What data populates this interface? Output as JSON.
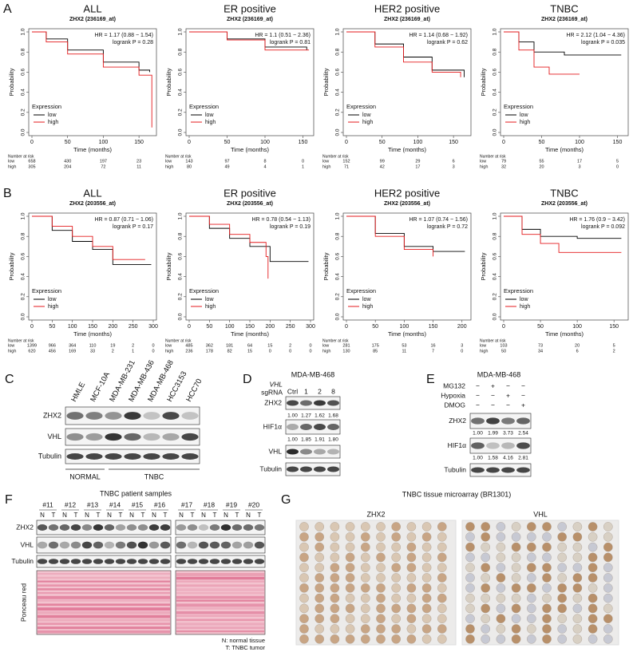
{
  "panel_letters": [
    "A",
    "B",
    "C",
    "D",
    "E",
    "F",
    "G"
  ],
  "km_common": {
    "xlabel": "Time (months)",
    "ylabel": "Probability",
    "legend_title": "Expression",
    "risk_title": "Number at risk",
    "ylim": [
      0,
      1
    ],
    "yticks": [
      {
        "value": 0,
        "label": "0.0"
      },
      {
        "value": 0.2,
        "label": "0.2"
      },
      {
        "value": 0.4,
        "label": "0.4"
      },
      {
        "value": 0.6,
        "label": "0.6"
      },
      {
        "value": 0.8,
        "label": "0.8"
      },
      {
        "value": 1,
        "label": "1.0"
      }
    ]
  },
  "km_rows": [
    {
      "probe": "ZHX2 (236169_at)",
      "panels": [
        {
          "title": "ALL",
          "hr": "HR = 1.17 (0.88 − 1.54)",
          "logrank": "logrank P = 0.28",
          "xlim": [
            0,
            170
          ],
          "xticks": [
            0,
            50,
            100,
            150
          ],
          "series": [
            {
              "name": "low",
              "color": "#000000",
              "x": [
                0,
                20,
                50,
                100,
                150,
                165
              ],
              "y": [
                1,
                0.93,
                0.82,
                0.7,
                0.62,
                0.6
              ],
              "risk": [
                658,
                430,
                197,
                23
              ]
            },
            {
              "name": "high",
              "color": "#e41a1c",
              "x": [
                0,
                20,
                50,
                100,
                150,
                165,
                168
              ],
              "y": [
                1,
                0.9,
                0.78,
                0.65,
                0.57,
                0.57,
                0.05
              ],
              "risk": [
                305,
                204,
                72,
                11
              ]
            }
          ]
        },
        {
          "title": "ER positive",
          "hr": "HR = 1.1 (0.51 − 2.36)",
          "logrank": "logrank P = 0.81",
          "xlim": [
            0,
            160
          ],
          "xticks": [
            0,
            50,
            100,
            150
          ],
          "series": [
            {
              "name": "low",
              "color": "#000000",
              "x": [
                0,
                50,
                100,
                155
              ],
              "y": [
                1,
                0.93,
                0.85,
                0.82
              ],
              "risk": [
                143,
                97,
                8,
                0
              ]
            },
            {
              "name": "high",
              "color": "#e41a1c",
              "x": [
                0,
                50,
                100,
                158
              ],
              "y": [
                1,
                0.92,
                0.82,
                0.82
              ],
              "risk": [
                80,
                49,
                4,
                1
              ]
            }
          ]
        },
        {
          "title": "HER2 positive",
          "hr": "HR = 1.14 (0.68 − 1.92)",
          "logrank": "logrank P = 0.62",
          "xlim": [
            0,
            170
          ],
          "xticks": [
            0,
            50,
            100,
            150
          ],
          "series": [
            {
              "name": "low",
              "color": "#000000",
              "x": [
                0,
                40,
                80,
                120,
                165
              ],
              "y": [
                1,
                0.88,
                0.75,
                0.62,
                0.55
              ],
              "risk": [
                152,
                99,
                29,
                6
              ]
            },
            {
              "name": "high",
              "color": "#e41a1c",
              "x": [
                0,
                40,
                80,
                120,
                160
              ],
              "y": [
                1,
                0.85,
                0.7,
                0.6,
                0.55
              ],
              "risk": [
                71,
                42,
                17,
                3
              ]
            }
          ]
        },
        {
          "title": "TNBC",
          "hr": "HR = 2.12 (1.04 − 4.36)",
          "logrank": "logrank P = 0.035",
          "xlim": [
            0,
            160
          ],
          "xticks": [
            0,
            50,
            100,
            150
          ],
          "series": [
            {
              "name": "low",
              "color": "#000000",
              "x": [
                0,
                20,
                40,
                80,
                155
              ],
              "y": [
                1,
                0.9,
                0.8,
                0.77,
                0.77
              ],
              "risk": [
                79,
                55,
                17,
                5
              ]
            },
            {
              "name": "high",
              "color": "#e41a1c",
              "x": [
                0,
                20,
                40,
                60,
                100
              ],
              "y": [
                1,
                0.82,
                0.65,
                0.58,
                0.58
              ],
              "risk": [
                32,
                20,
                3,
                0
              ]
            }
          ]
        }
      ]
    },
    {
      "probe": "ZHX2 (203556_at)",
      "panels": [
        {
          "title": "ALL",
          "hr": "HR = 0.87 (0.71 − 1.06)",
          "logrank": "logrank P = 0.17",
          "xlim": [
            0,
            300
          ],
          "xticks": [
            0,
            50,
            100,
            150,
            200,
            250,
            300
          ],
          "series": [
            {
              "name": "low",
              "color": "#000000",
              "x": [
                0,
                50,
                100,
                150,
                200,
                295
              ],
              "y": [
                1,
                0.86,
                0.75,
                0.67,
                0.52,
                0.52
              ],
              "risk": [
                1399,
                966,
                364,
                110,
                19,
                2,
                0
              ]
            },
            {
              "name": "high",
              "color": "#e41a1c",
              "x": [
                0,
                50,
                100,
                150,
                200,
                280
              ],
              "y": [
                1,
                0.9,
                0.8,
                0.7,
                0.57,
                0.57
              ],
              "risk": [
                620,
                456,
                169,
                33,
                2,
                1,
                0
              ]
            }
          ]
        },
        {
          "title": "ER positive",
          "hr": "HR = 0.78 (0.54 − 1.13)",
          "logrank": "logrank P = 0.19",
          "xlim": [
            0,
            300
          ],
          "xticks": [
            0,
            50,
            100,
            150,
            200,
            250,
            300
          ],
          "series": [
            {
              "name": "low",
              "color": "#000000",
              "x": [
                0,
                50,
                100,
                150,
                200,
                295
              ],
              "y": [
                1,
                0.88,
                0.78,
                0.7,
                0.55,
                0.55
              ],
              "risk": [
                485,
                362,
                181,
                64,
                15,
                2,
                0
              ]
            },
            {
              "name": "high",
              "color": "#e41a1c",
              "x": [
                0,
                50,
                100,
                150,
                190,
                195
              ],
              "y": [
                1,
                0.92,
                0.82,
                0.74,
                0.6,
                0.38
              ],
              "risk": [
                236,
                178,
                82,
                15,
                0,
                0,
                0
              ]
            }
          ]
        },
        {
          "title": "HER2 positive",
          "hr": "HR = 1.07 (0.74 − 1.56)",
          "logrank": "logrank P = 0.72",
          "xlim": [
            0,
            210
          ],
          "xticks": [
            0,
            50,
            100,
            150,
            200
          ],
          "series": [
            {
              "name": "low",
              "color": "#000000",
              "x": [
                0,
                50,
                100,
                150,
                205
              ],
              "y": [
                1,
                0.83,
                0.7,
                0.65,
                0.65
              ],
              "risk": [
                281,
                175,
                53,
                16,
                3
              ]
            },
            {
              "name": "high",
              "color": "#e41a1c",
              "x": [
                0,
                50,
                100,
                150
              ],
              "y": [
                1,
                0.8,
                0.67,
                0.6
              ],
              "risk": [
                130,
                85,
                11,
                7,
                0
              ]
            }
          ]
        },
        {
          "title": "TNBC",
          "hr": "HR = 1.76 (0.9 − 3.42)",
          "logrank": "logrank P = 0.092",
          "xlim": [
            0,
            165
          ],
          "xticks": [
            0,
            50,
            100,
            150
          ],
          "series": [
            {
              "name": "low",
              "color": "#000000",
              "x": [
                0,
                25,
                50,
                100,
                160
              ],
              "y": [
                1,
                0.87,
                0.8,
                0.78,
                0.78
              ],
              "risk": [
                103,
                73,
                20,
                5
              ]
            },
            {
              "name": "high",
              "color": "#e41a1c",
              "x": [
                0,
                25,
                50,
                75,
                160
              ],
              "y": [
                1,
                0.82,
                0.73,
                0.64,
                0.64
              ],
              "risk": [
                50,
                34,
                6,
                2
              ]
            }
          ]
        }
      ]
    }
  ],
  "panel_c": {
    "lanes": [
      {
        "label": "HMLE",
        "color": "#2e8b2e"
      },
      {
        "label": "MCF-10A",
        "color": "#2e8b2e"
      },
      {
        "label": "MDA-MB-231",
        "color": "#d62020"
      },
      {
        "label": "MDA-MB-436",
        "color": "#d62020"
      },
      {
        "label": "MDA-MB-468",
        "color": "#d62020"
      },
      {
        "label": "HCC3153",
        "color": "#d62020"
      },
      {
        "label": "HCC70",
        "color": "#d62020"
      }
    ],
    "rows": [
      "ZHX2",
      "VHL",
      "Tubulin"
    ],
    "groups": [
      {
        "label": "NORMAL",
        "color": "#2e8b2e"
      },
      {
        "label": "TNBC",
        "color": "#d62020"
      }
    ]
  },
  "panel_d": {
    "cell_line": "MDA-MB-468",
    "gene": "VHL",
    "sgrna": "sgRNA",
    "lanes": [
      "Ctrl",
      "1",
      "2",
      "8"
    ],
    "rows": [
      {
        "label": "ZHX2",
        "quant": [
          "1.00",
          "1.27",
          "1.62",
          "1.68"
        ]
      },
      {
        "label": "HIF1α",
        "quant": [
          "1.00",
          "1.85",
          "1.91",
          "1.80"
        ]
      },
      {
        "label": "VHL"
      },
      {
        "label": "Tubulin"
      }
    ]
  },
  "panel_e": {
    "cell_line": "MDA-MB-468",
    "treatments": [
      {
        "name": "MG132",
        "signs": [
          "−",
          "+",
          "−",
          "−"
        ]
      },
      {
        "name": "Hypoxia",
        "signs": [
          "−",
          "−",
          "+",
          "−"
        ]
      },
      {
        "name": "DMOG",
        "signs": [
          "−",
          "−",
          "−",
          "+"
        ]
      }
    ],
    "rows": [
      {
        "label": "ZHX2",
        "quant": [
          "1.00",
          "1.99",
          "3.73",
          "2.54"
        ]
      },
      {
        "label": "HIF1α",
        "quant": [
          "1.00",
          "1.58",
          "4.16",
          "2.81"
        ]
      },
      {
        "label": "Tubulin"
      }
    ]
  },
  "panel_f": {
    "title": "TNBC patient samples",
    "samples": [
      "#11",
      "#12",
      "#13",
      "#14",
      "#15",
      "#16",
      "#17",
      "#18",
      "#19",
      "#20"
    ],
    "lane_labels": [
      "N",
      "T"
    ],
    "rows": [
      "ZHX2",
      "VHL",
      "Tubulin",
      "Ponceau red"
    ],
    "notes": [
      "N: normal tissue",
      "T: TNBC tumor"
    ]
  },
  "panel_g": {
    "title": "TNBC tissue microarray (BR1301)",
    "stains": [
      "ZHX2",
      "VHL"
    ]
  }
}
